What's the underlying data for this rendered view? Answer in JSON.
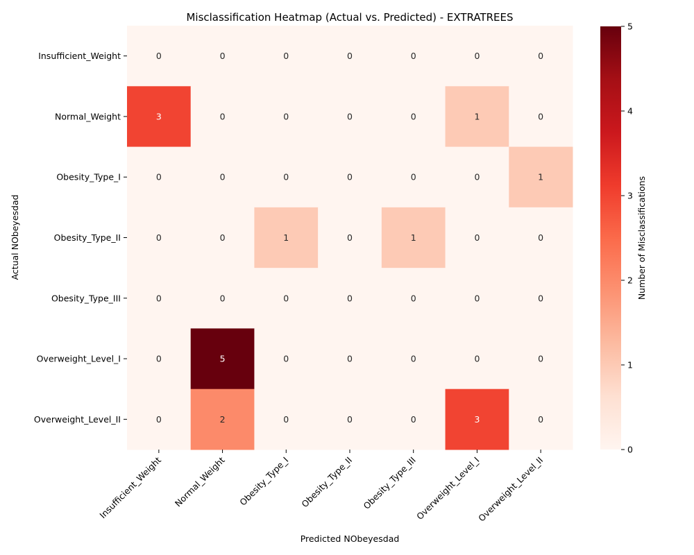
{
  "chart_data": {
    "type": "heatmap",
    "title": "Misclassification Heatmap (Actual vs. Predicted) - EXTRATREES",
    "xlabel": "Predicted NObeyesdad",
    "ylabel": "Actual NObeyesdad",
    "colorbar_label": "Number of Misclassifications",
    "x_categories": [
      "Insufficient_Weight",
      "Normal_Weight",
      "Obesity_Type_I",
      "Obesity_Type_II",
      "Obesity_Type_III",
      "Overweight_Level_I",
      "Overweight_Level_II"
    ],
    "y_categories": [
      "Insufficient_Weight",
      "Normal_Weight",
      "Obesity_Type_I",
      "Obesity_Type_II",
      "Obesity_Type_III",
      "Overweight_Level_I",
      "Overweight_Level_II"
    ],
    "values": [
      [
        0,
        0,
        0,
        0,
        0,
        0,
        0
      ],
      [
        3,
        0,
        0,
        0,
        0,
        1,
        0
      ],
      [
        0,
        0,
        0,
        0,
        0,
        0,
        1
      ],
      [
        0,
        0,
        1,
        0,
        1,
        0,
        0
      ],
      [
        0,
        0,
        0,
        0,
        0,
        0,
        0
      ],
      [
        0,
        5,
        0,
        0,
        0,
        0,
        0
      ],
      [
        0,
        2,
        0,
        0,
        0,
        3,
        0
      ]
    ],
    "color_range": [
      0,
      5
    ],
    "colorbar_ticks": [
      0,
      1,
      2,
      3,
      4,
      5
    ],
    "colormap": "Reds",
    "colorscale": [
      "#fff5f0",
      "#fee0d2",
      "#fcbba1",
      "#fc9272",
      "#fb6a4a",
      "#ef3b2c",
      "#cb181d",
      "#a50f15",
      "#67000d"
    ]
  }
}
